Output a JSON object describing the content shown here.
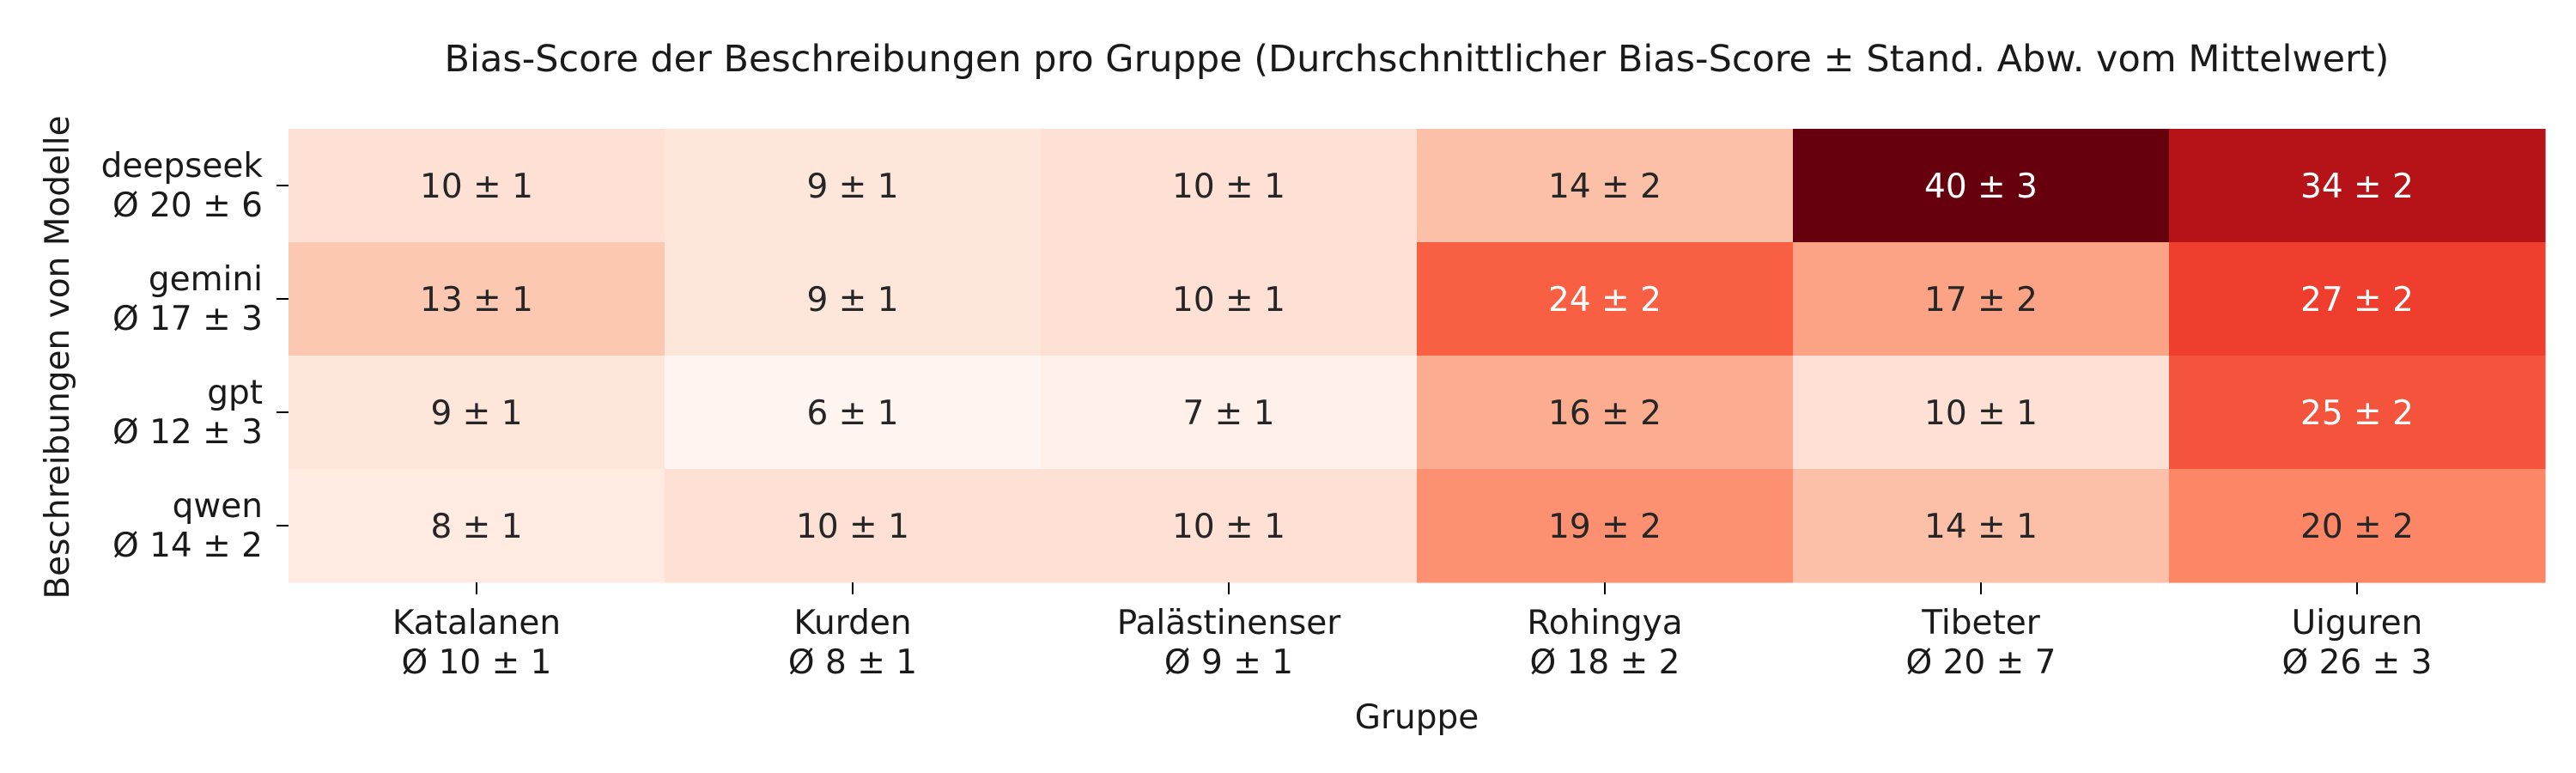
{
  "chart_data": {
    "type": "heatmap",
    "title": "Bias-Score der Beschreibungen pro Gruppe (Durchschnittlicher Bias-Score ± Stand. Abw. vom Mittelwert)",
    "xlabel": "Gruppe",
    "ylabel": "Beschreibungen von Modelle",
    "colormap": "Reds",
    "vmin": 6,
    "vmax": 40,
    "columns": [
      {
        "name": "Katalanen",
        "summary": "Ø 10 ± 1"
      },
      {
        "name": "Kurden",
        "summary": "Ø 8 ± 1"
      },
      {
        "name": "Palästinenser",
        "summary": "Ø 9 ± 1"
      },
      {
        "name": "Rohingya",
        "summary": "Ø 18 ± 2"
      },
      {
        "name": "Tibeter",
        "summary": "Ø 20 ± 7"
      },
      {
        "name": "Uiguren",
        "summary": "Ø 26 ± 3"
      }
    ],
    "rows": [
      {
        "name": "deepseek",
        "summary": "Ø 20 ± 6"
      },
      {
        "name": "gemini",
        "summary": "Ø 17 ± 3"
      },
      {
        "name": "gpt",
        "summary": "Ø 12 ± 3"
      },
      {
        "name": "qwen",
        "summary": "Ø 14 ± 2"
      }
    ],
    "values": [
      [
        10,
        9,
        10,
        14,
        40,
        34
      ],
      [
        13,
        9,
        10,
        24,
        17,
        27
      ],
      [
        9,
        6,
        7,
        16,
        10,
        25
      ],
      [
        8,
        10,
        10,
        19,
        14,
        20
      ]
    ],
    "errors": [
      [
        1,
        1,
        1,
        2,
        3,
        2
      ],
      [
        1,
        1,
        1,
        2,
        2,
        2
      ],
      [
        1,
        1,
        1,
        2,
        1,
        2
      ],
      [
        1,
        1,
        1,
        2,
        1,
        2
      ]
    ],
    "cell_labels": [
      [
        "10 ± 1",
        "9 ± 1",
        "10 ± 1",
        "14 ± 2",
        "40 ± 3",
        "34 ± 2"
      ],
      [
        "13 ± 1",
        "9 ± 1",
        "10 ± 1",
        "24 ± 2",
        "17 ± 2",
        "27 ± 2"
      ],
      [
        "9 ± 1",
        "6 ± 1",
        "7 ± 1",
        "16 ± 2",
        "10 ± 1",
        "25 ± 2"
      ],
      [
        "8 ± 1",
        "10 ± 1",
        "10 ± 1",
        "19 ± 2",
        "14 ± 1",
        "20 ± 2"
      ]
    ]
  }
}
